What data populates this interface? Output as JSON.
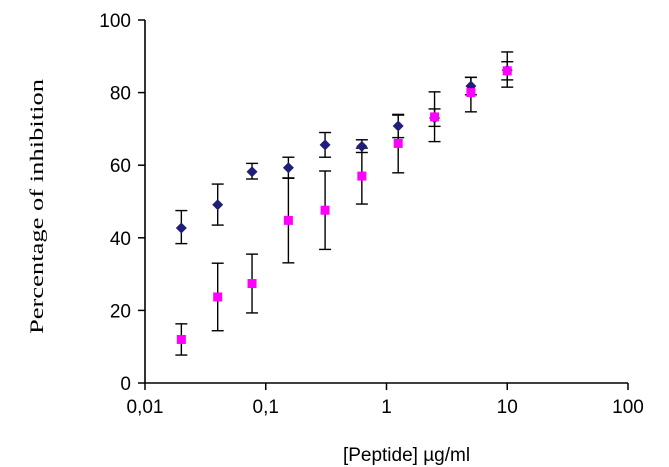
{
  "chart_data": {
    "type": "scatter",
    "xlabel": "[Peptide]  µg/ml",
    "ylabel": "Percentage of inhibition",
    "x_scale": "log",
    "xlim": [
      0.01,
      100
    ],
    "ylim": [
      0,
      100
    ],
    "x_ticks": [
      "0,01",
      "0,1",
      "1",
      "10",
      "100"
    ],
    "y_ticks": [
      "0",
      "20",
      "40",
      "60",
      "80",
      "100"
    ],
    "grid": false,
    "legend": "none",
    "series": [
      {
        "marker": "diamond",
        "color": "#1f1f7a",
        "points": [
          {
            "x": 0.02,
            "y": 42.7,
            "err_low": 38.4,
            "err_high": 47.5
          },
          {
            "x": 0.04,
            "y": 49.1,
            "err_low": 43.5,
            "err_high": 54.8
          },
          {
            "x": 0.077,
            "y": 58.2,
            "err_low": 56.2,
            "err_high": 60.5
          },
          {
            "x": 0.154,
            "y": 59.3,
            "err_low": 56.5,
            "err_high": 62.2
          },
          {
            "x": 0.31,
            "y": 65.6,
            "err_low": 62.2,
            "err_high": 69.0
          },
          {
            "x": 0.625,
            "y": 65.2,
            "err_low": 63.5,
            "err_high": 67.0
          },
          {
            "x": 1.25,
            "y": 70.8,
            "err_low": 67.6,
            "err_high": 73.8
          },
          {
            "x": 2.5,
            "y": 73.0,
            "err_low": 70.7,
            "err_high": 75.5
          },
          {
            "x": 5,
            "y": 81.8,
            "err_low": 79.4,
            "err_high": 84.2
          },
          {
            "x": 10,
            "y": 86.2,
            "err_low": 81.5,
            "err_high": 91.2
          }
        ]
      },
      {
        "marker": "square",
        "color": "#ff00ff",
        "points": [
          {
            "x": 0.02,
            "y": 12.0,
            "err_low": 7.7,
            "err_high": 16.3
          },
          {
            "x": 0.04,
            "y": 23.7,
            "err_low": 14.4,
            "err_high": 33.0
          },
          {
            "x": 0.077,
            "y": 27.4,
            "err_low": 19.3,
            "err_high": 35.5
          },
          {
            "x": 0.154,
            "y": 44.8,
            "err_low": 33.1,
            "err_high": 56.4
          },
          {
            "x": 0.31,
            "y": 47.6,
            "err_low": 36.8,
            "err_high": 58.4
          },
          {
            "x": 0.625,
            "y": 57.0,
            "err_low": 49.3,
            "err_high": 64.7
          },
          {
            "x": 1.25,
            "y": 66.0,
            "err_low": 57.9,
            "err_high": 74.0
          },
          {
            "x": 2.5,
            "y": 73.3,
            "err_low": 66.5,
            "err_high": 80.2
          },
          {
            "x": 5,
            "y": 80.0,
            "err_low": 74.7,
            "err_high": 84.2
          },
          {
            "x": 10,
            "y": 86.0,
            "err_low": 83.5,
            "err_high": 88.5
          }
        ]
      }
    ]
  }
}
